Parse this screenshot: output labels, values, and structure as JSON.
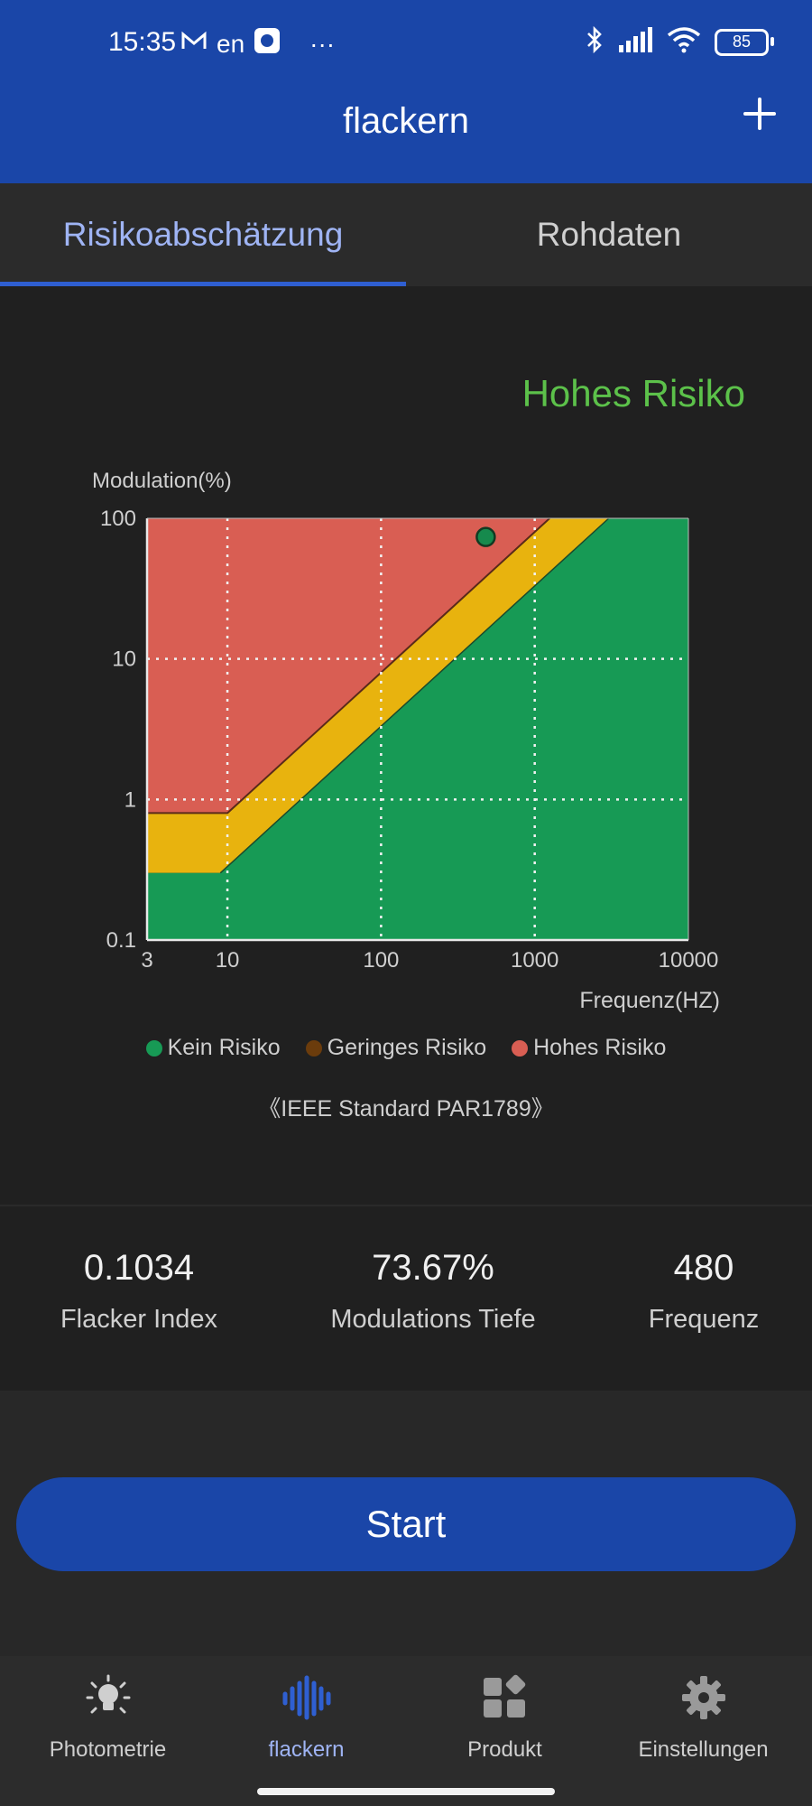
{
  "status_bar": {
    "time": "15:35",
    "extras": "en",
    "more": "···",
    "battery": "85"
  },
  "app_bar": {
    "title": "flackern"
  },
  "tabs": [
    {
      "label": "Risikoabschätzung",
      "active": true
    },
    {
      "label": "Rohdaten",
      "active": false
    }
  ],
  "risk_result": "Hohes Risiko",
  "chart_data": {
    "type": "scatter",
    "title": "",
    "ylabel": "Modulation(%)",
    "xlabel": "Frequenz(HZ)",
    "x_scale": "log",
    "y_scale": "log",
    "xlim": [
      3,
      10000
    ],
    "ylim": [
      0.1,
      100
    ],
    "x_ticks": [
      "3",
      "10",
      "100",
      "1000",
      "10000"
    ],
    "y_ticks": [
      "100",
      "10",
      "1",
      "0.1"
    ],
    "grid": true,
    "regions": [
      {
        "name": "Kein Risiko",
        "color": "#179a55"
      },
      {
        "name": "Geringes Risiko",
        "color": "#e8b30e"
      },
      {
        "name": "Hohes Risiko",
        "color": "#d95e53"
      }
    ],
    "point": {
      "x": 480,
      "y": 73.67,
      "color": "#168a4d"
    }
  },
  "legend": [
    {
      "label": "Kein Risiko",
      "color": "#179a55"
    },
    {
      "label": "Geringes Risiko",
      "color": "#6b3c0c"
    },
    {
      "label": "Hohes Risiko",
      "color": "#d95e53"
    }
  ],
  "standard": "《IEEE Standard PAR1789》",
  "stats": [
    {
      "value": "0.1034",
      "label": "Flacker Index"
    },
    {
      "value": "73.67%",
      "label": "Modulations Tiefe"
    },
    {
      "value": "480",
      "label": "Frequenz"
    }
  ],
  "start_label": "Start",
  "nav": [
    {
      "label": "Photometrie",
      "icon": "bulb-icon",
      "active": false
    },
    {
      "label": "flackern",
      "icon": "waveform-icon",
      "active": true
    },
    {
      "label": "Produkt",
      "icon": "grid-icon",
      "active": false
    },
    {
      "label": "Einstellungen",
      "icon": "gear-icon",
      "active": false
    }
  ]
}
